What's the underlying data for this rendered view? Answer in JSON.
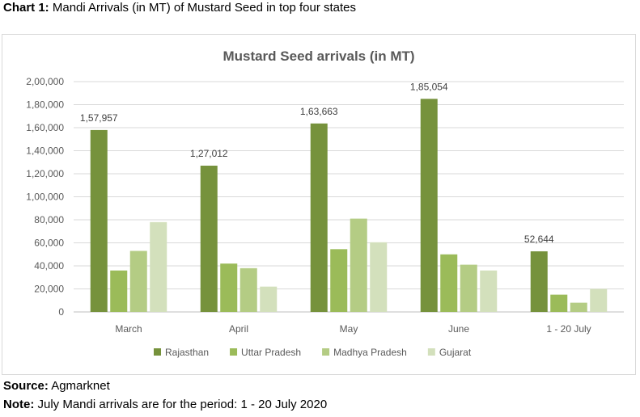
{
  "caption": {
    "label": "Chart 1:",
    "text": "Mandi Arrivals (in MT) of Mustard Seed in top four states"
  },
  "source": {
    "label": "Source:",
    "text": "Agmarknet"
  },
  "note": {
    "label": "Note:",
    "text": "July Mandi arrivals are for the period: 1 - 20 July 2020"
  },
  "chart_data": {
    "type": "bar",
    "title": "Mustard Seed arrivals (in MT)",
    "xlabel": "",
    "ylabel": "",
    "categories": [
      "March",
      "April",
      "May",
      "June",
      "1 - 20 July"
    ],
    "ylim": [
      0,
      200000
    ],
    "yticks": [
      0,
      20000,
      40000,
      60000,
      80000,
      100000,
      120000,
      140000,
      160000,
      180000,
      200000
    ],
    "ytick_labels": [
      "0",
      "20,000",
      "40,000",
      "60,000",
      "80,000",
      "1,00,000",
      "1,20,000",
      "1,40,000",
      "1,60,000",
      "1,80,000",
      "2,00,000"
    ],
    "grid": true,
    "legend_position": "bottom",
    "series": [
      {
        "name": "Rajasthan",
        "color": "#76923c",
        "values": [
          157957,
          127012,
          163663,
          185054,
          52644
        ],
        "data_labels": [
          "1,57,957",
          "1,27,012",
          "1,63,663",
          "1,85,054",
          "52,644"
        ]
      },
      {
        "name": "Uttar Pradesh",
        "color": "#9bbb59",
        "values": [
          36000,
          42000,
          54500,
          50000,
          15000
        ]
      },
      {
        "name": "Madhya Pradesh",
        "color": "#b4cc84",
        "values": [
          53000,
          38000,
          81000,
          41000,
          8000
        ]
      },
      {
        "name": "Gujarat",
        "color": "#d3e0bc",
        "values": [
          78000,
          22000,
          60500,
          36000,
          20000
        ]
      }
    ]
  }
}
